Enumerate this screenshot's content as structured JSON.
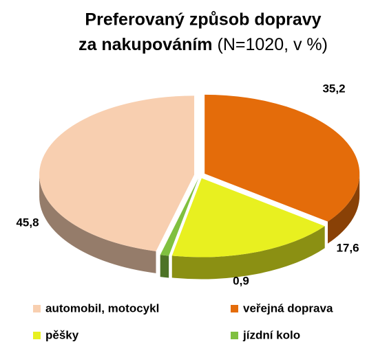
{
  "chart_data": {
    "type": "pie",
    "title": [
      "Preferovaný způsob dopravy",
      "za nakupováním"
    ],
    "subtitle": "(N=1020, v %)",
    "categories": [
      "veřejná doprava",
      "pěšky",
      "jízdní kolo",
      "automobil, motocykl"
    ],
    "values": [
      35.2,
      17.6,
      0.9,
      45.8
    ],
    "value_labels": [
      "35,2",
      "17,6",
      "0,9",
      "45,8"
    ],
    "colors": [
      "#e46c0a",
      "#e8f020",
      "#80c040",
      "#f8cfb0"
    ],
    "legend_order": [
      3,
      0,
      1,
      2
    ]
  }
}
